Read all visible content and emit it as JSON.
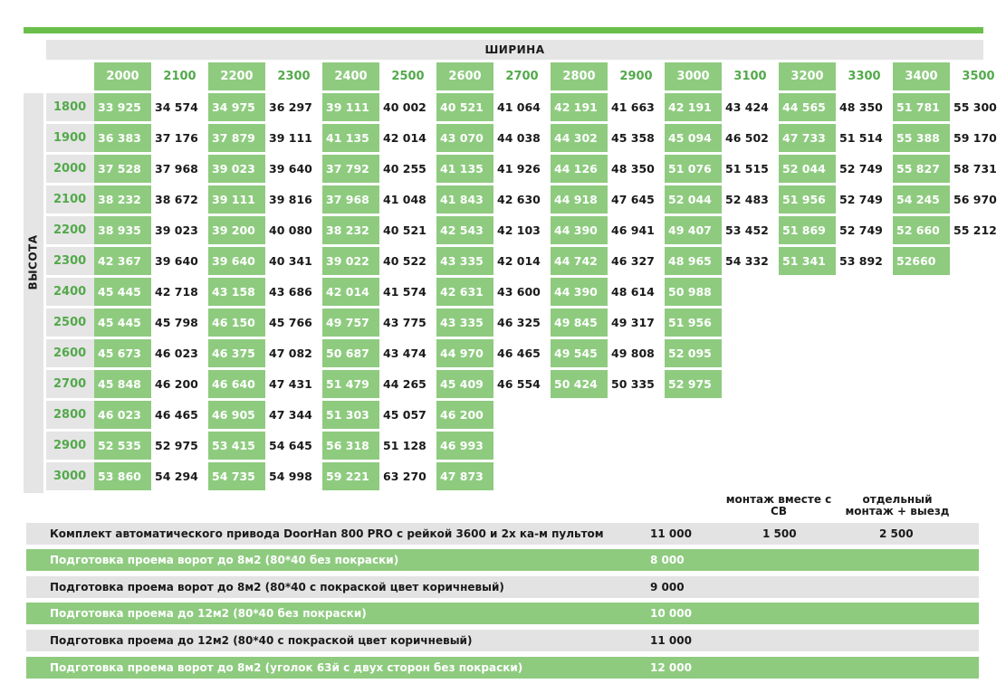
{
  "labels": {
    "width": "ШИРИНА",
    "height": "ВЫСОТА"
  },
  "widths": [
    {
      "v": "2000",
      "g": true
    },
    {
      "v": "2100",
      "g": false
    },
    {
      "v": "2200",
      "g": true
    },
    {
      "v": "2300",
      "g": false
    },
    {
      "v": "2400",
      "g": true
    },
    {
      "v": "2500",
      "g": false
    },
    {
      "v": "2600",
      "g": true
    },
    {
      "v": "2700",
      "g": false
    },
    {
      "v": "2800",
      "g": true
    },
    {
      "v": "2900",
      "g": false
    },
    {
      "v": "3000",
      "g": true
    },
    {
      "v": "3100",
      "g": false
    },
    {
      "v": "3200",
      "g": true
    },
    {
      "v": "3300",
      "g": false
    },
    {
      "v": "3400",
      "g": true
    },
    {
      "v": "3500",
      "g": false
    }
  ],
  "rows": [
    {
      "h": "1800",
      "cells": [
        "33 925",
        "34 574",
        "34 975",
        "36 297",
        "39 111",
        "40 002",
        "40 521",
        "41 064",
        "42 191",
        "41 663",
        "42 191",
        "43 424",
        "44 565",
        "48 350",
        "51 781",
        "55 300"
      ]
    },
    {
      "h": "1900",
      "cells": [
        "36 383",
        "37 176",
        "37 879",
        "39 111",
        "41 135",
        "42 014",
        "43 070",
        "44 038",
        "44 302",
        "45 358",
        "45 094",
        "46 502",
        "47 733",
        "51 514",
        "55 388",
        "59 170"
      ]
    },
    {
      "h": "2000",
      "cells": [
        "37 528",
        "37 968",
        "39 023",
        "39 640",
        "37 792",
        "40 255",
        "41 135",
        "41 926",
        "44 126",
        "48 350",
        "51 076",
        "51 515",
        "52 044",
        "52 749",
        "55 827",
        "58 731"
      ]
    },
    {
      "h": "2100",
      "cells": [
        "38 232",
        "38 672",
        "39 111",
        "39 816",
        "37 968",
        "41 048",
        "41 843",
        "42 630",
        "44 918",
        "47 645",
        "52 044",
        "52 483",
        "51 956",
        "52 749",
        "54 245",
        "56 970"
      ]
    },
    {
      "h": "2200",
      "cells": [
        "38 935",
        "39 023",
        "39 200",
        "40 080",
        "38 232",
        "40 521",
        "42 543",
        "42 103",
        "44 390",
        "46 941",
        "49 407",
        "53 452",
        "51 869",
        "52 749",
        "52 660",
        "55 212"
      ]
    },
    {
      "h": "2300",
      "cells": [
        "42 367",
        "39 640",
        "39 640",
        "40 341",
        "39 022",
        "40 522",
        "43 335",
        "42 014",
        "44 742",
        "46 327",
        "48 965",
        "54 332",
        "51 341",
        "53 892",
        "52660",
        ""
      ]
    },
    {
      "h": "2400",
      "cells": [
        "45 445",
        "42 718",
        "43 158",
        "43 686",
        "42 014",
        "41 574",
        "42 631",
        "43 600",
        "44 390",
        "48 614",
        "50 988",
        "",
        "",
        "",
        "",
        ""
      ]
    },
    {
      "h": "2500",
      "cells": [
        "45 445",
        "45 798",
        "46 150",
        "45 766",
        "49 757",
        "43 775",
        "43 335",
        "46 325",
        "49 845",
        "49 317",
        "51 956",
        "",
        "",
        "",
        "",
        ""
      ]
    },
    {
      "h": "2600",
      "cells": [
        "45 673",
        "46 023",
        "46 375",
        "47 082",
        "50 687",
        "43 474",
        "44 970",
        "46 465",
        "49 545",
        "49 808",
        "52 095",
        "",
        "",
        "",
        "",
        ""
      ]
    },
    {
      "h": "2700",
      "cells": [
        "45 848",
        "46 200",
        "46 640",
        "47 431",
        "51 479",
        "44 265",
        "45 409",
        "46 554",
        "50 424",
        "50 335",
        "52 975",
        "",
        "",
        "",
        "",
        ""
      ]
    },
    {
      "h": "2800",
      "cells": [
        "46 023",
        "46 465",
        "46 905",
        "47 344",
        "51 303",
        "45 057",
        "46 200",
        "",
        "",
        "",
        "",
        "",
        "",
        "",
        "",
        ""
      ]
    },
    {
      "h": "2900",
      "cells": [
        "52 535",
        "52 975",
        "53 415",
        "54 645",
        "56 318",
        "51 128",
        "46 993",
        "",
        "",
        "",
        "",
        "",
        "",
        "",
        "",
        ""
      ]
    },
    {
      "h": "3000",
      "cells": [
        "53 860",
        "54 294",
        "54 735",
        "54 998",
        "59 221",
        "63 270",
        "47 873",
        "",
        "",
        "",
        "",
        "",
        "",
        "",
        "",
        ""
      ]
    }
  ],
  "services": {
    "col_together": "монтаж вместе с СВ",
    "col_separate": "отдельный монтаж + выезд",
    "rows": [
      {
        "text": "Комплект автоматического привода DoorHan 800 PRO с рейкой 3600 и 2х ка-м пультом",
        "price": "11 000",
        "together": "1 500",
        "separate": "2 500",
        "style": "gray"
      },
      {
        "text": "Подготовка проема ворот до 8м2 (80*40 без покраски)",
        "price": "8 000",
        "together": "",
        "separate": "",
        "style": "green"
      },
      {
        "text": "Подготовка проема ворот до 8м2 (80*40  с покраской цвет коричневый)",
        "price": "9 000",
        "together": "",
        "separate": "",
        "style": "gray"
      },
      {
        "text": "Подготовка проема до 12м2 (80*40 без покраски)",
        "price": "10 000",
        "together": "",
        "separate": "",
        "style": "green"
      },
      {
        "text": "Подготовка проема до 12м2 (80*40  с покраской цвет коричневый)",
        "price": "11 000",
        "together": "",
        "separate": "",
        "style": "gray"
      },
      {
        "text": "Подготовка проема ворот до 8м2 (уголок 63й с двух сторон без покраски)",
        "price": "12 000",
        "together": "",
        "separate": "",
        "style": "green"
      }
    ]
  },
  "colors": {
    "accent": "#6abf4b",
    "cell_green": "#8ecb7f",
    "stripe_gray": "#e5e5e5",
    "header_text_green": "#53a94b"
  }
}
